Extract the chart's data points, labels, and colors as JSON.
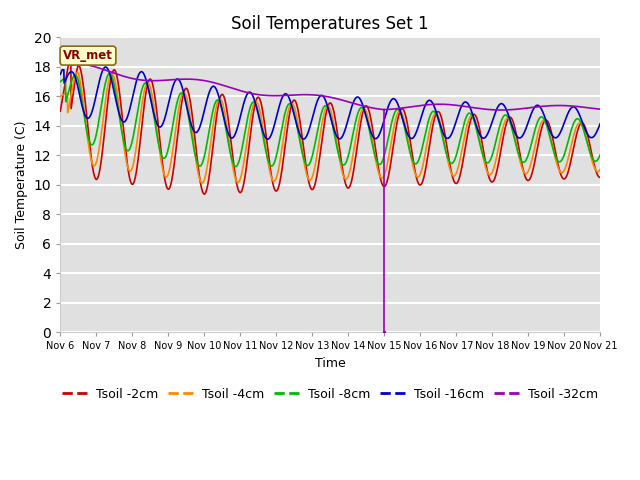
{
  "title": "Soil Temperatures Set 1",
  "ylabel": "Soil Temperature (C)",
  "xlabel": "Time",
  "ylim": [
    0,
    20
  ],
  "xlim": [
    0,
    15
  ],
  "xtick_labels": [
    "Nov 6",
    "Nov 7",
    "Nov 8",
    "Nov 9",
    "Nov 10",
    "Nov 11",
    "Nov 12",
    "Nov 13",
    "Nov 14",
    "Nov 15",
    "Nov 16",
    "Nov 17",
    "Nov 18",
    "Nov 19",
    "Nov 20",
    "Nov 21"
  ],
  "vr_met_label": "VR_met",
  "plot_bg_color": "#e0e0e0",
  "fig_bg_color": "#ffffff",
  "grid_color": "#ffffff",
  "legend_entries": [
    "Tsoil -2cm",
    "Tsoil -4cm",
    "Tsoil -8cm",
    "Tsoil -16cm",
    "Tsoil -32cm"
  ],
  "colors": [
    "#cc0000",
    "#ff8800",
    "#00bb00",
    "#0000cc",
    "#9900bb"
  ],
  "title_fontsize": 12,
  "axis_label_fontsize": 9,
  "tick_fontsize": 7,
  "legend_fontsize": 9,
  "linewidth": 1.2,
  "spike_day": 9.0,
  "spike_bottom": 0.05
}
